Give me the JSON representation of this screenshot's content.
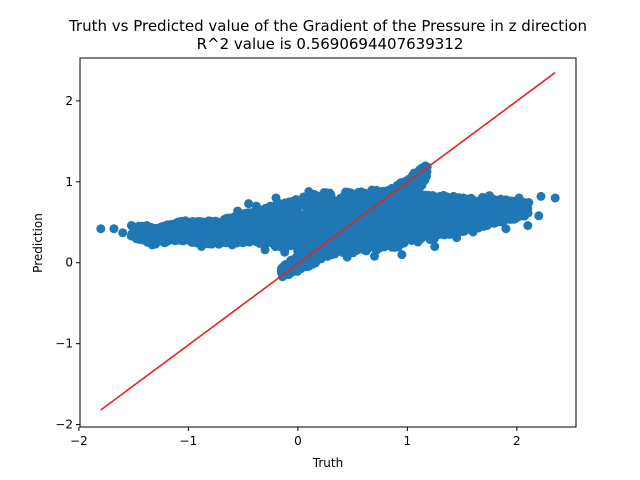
{
  "chart_data": {
    "type": "scatter",
    "title": "Truth vs Predicted value of the Gradient of the Pressure in z direction",
    "subtitle": "R^2 value is 0.5690694407639312",
    "xlabel": "Truth",
    "ylabel": "Prediction",
    "xlim": [
      -1.99,
      2.54
    ],
    "ylim": [
      -2.03,
      2.53
    ],
    "xticks": [
      -2,
      -1,
      0,
      1,
      2
    ],
    "yticks": [
      -2,
      -1,
      0,
      1,
      2
    ],
    "xtick_labels": [
      "−2",
      "−1",
      "0",
      "1",
      "2"
    ],
    "ytick_labels": [
      "−2",
      "−1",
      "0",
      "1",
      "2"
    ],
    "grid": false,
    "colors": {
      "points": "#1f77b4",
      "line": "#e8231f",
      "axes": "#000000"
    },
    "series": [
      {
        "kind": "points",
        "points": [
          [
            -1.8,
            0.42
          ],
          [
            -1.68,
            0.42
          ],
          [
            -1.6,
            0.37
          ],
          [
            -1.52,
            0.46
          ],
          [
            -1.47,
            0.4
          ],
          [
            -1.45,
            0.36
          ],
          [
            -1.38,
            0.46
          ],
          [
            -1.33,
            0.22
          ],
          [
            -1.3,
            0.41
          ],
          [
            -1.25,
            0.27
          ],
          [
            -1.18,
            0.34
          ],
          [
            -1.1,
            0.49
          ],
          [
            -1.05,
            0.27
          ],
          [
            -0.98,
            0.49
          ],
          [
            -0.92,
            0.5
          ],
          [
            -0.88,
            0.2
          ],
          [
            -0.8,
            0.44
          ],
          [
            -0.72,
            0.3
          ],
          [
            -0.65,
            0.55
          ],
          [
            -0.6,
            0.22
          ],
          [
            -0.55,
            0.64
          ],
          [
            -0.45,
            0.73
          ],
          [
            -0.38,
            0.7
          ],
          [
            -0.3,
            0.16
          ],
          [
            -0.2,
            0.8
          ],
          [
            -0.12,
            0.13
          ],
          [
            0.1,
            0.88
          ],
          [
            0.22,
            0.09
          ],
          [
            0.45,
            0.07
          ],
          [
            0.7,
            0.08
          ],
          [
            0.95,
            0.1
          ],
          [
            1.25,
            0.2
          ],
          [
            1.45,
            0.31
          ],
          [
            1.6,
            0.38
          ],
          [
            1.75,
            0.83
          ],
          [
            1.9,
            0.42
          ],
          [
            2.02,
            0.8
          ],
          [
            2.1,
            0.46
          ],
          [
            2.2,
            0.58
          ],
          [
            2.22,
            0.82
          ],
          [
            2.35,
            0.8
          ]
        ]
      },
      {
        "kind": "band",
        "points": [
          [
            -1.5,
            0.39
          ],
          [
            -1.3,
            0.33
          ],
          [
            -1.1,
            0.4
          ],
          [
            -0.9,
            0.38
          ],
          [
            -0.7,
            0.37
          ],
          [
            -0.5,
            0.43
          ],
          [
            -0.3,
            0.45
          ],
          [
            -0.1,
            0.47
          ],
          [
            0.1,
            0.47
          ],
          [
            0.3,
            0.5
          ],
          [
            0.5,
            0.5
          ],
          [
            0.7,
            0.53
          ],
          [
            0.9,
            0.55
          ],
          [
            1.1,
            0.55
          ],
          [
            1.3,
            0.58
          ],
          [
            1.5,
            0.6
          ],
          [
            1.7,
            0.63
          ],
          [
            1.9,
            0.65
          ],
          [
            2.1,
            0.67
          ]
        ],
        "half_width": [
          0.08,
          0.1,
          0.12,
          0.14,
          0.15,
          0.18,
          0.22,
          0.3,
          0.35,
          0.38,
          0.38,
          0.38,
          0.36,
          0.3,
          0.26,
          0.22,
          0.18,
          0.13,
          0.08
        ]
      },
      {
        "kind": "diagonal-cloud",
        "points": [
          [
            -0.15,
            -0.12
          ],
          [
            -0.05,
            -0.05
          ],
          [
            0.05,
            0.02
          ],
          [
            0.15,
            0.12
          ],
          [
            0.25,
            0.2
          ],
          [
            0.35,
            0.3
          ],
          [
            0.45,
            0.4
          ],
          [
            0.55,
            0.5
          ],
          [
            0.65,
            0.58
          ],
          [
            0.75,
            0.68
          ],
          [
            0.85,
            0.78
          ],
          [
            0.95,
            0.86
          ],
          [
            1.05,
            0.97
          ],
          [
            1.12,
            1.06
          ],
          [
            1.17,
            1.15
          ]
        ],
        "half_width": [
          0.03,
          0.08,
          0.12,
          0.16,
          0.2,
          0.24,
          0.26,
          0.26,
          0.26,
          0.24,
          0.2,
          0.17,
          0.12,
          0.08,
          0.04
        ]
      },
      {
        "kind": "line",
        "name": "",
        "x": [
          -1.8,
          2.35
        ],
        "y": [
          -1.82,
          2.35
        ]
      }
    ]
  }
}
